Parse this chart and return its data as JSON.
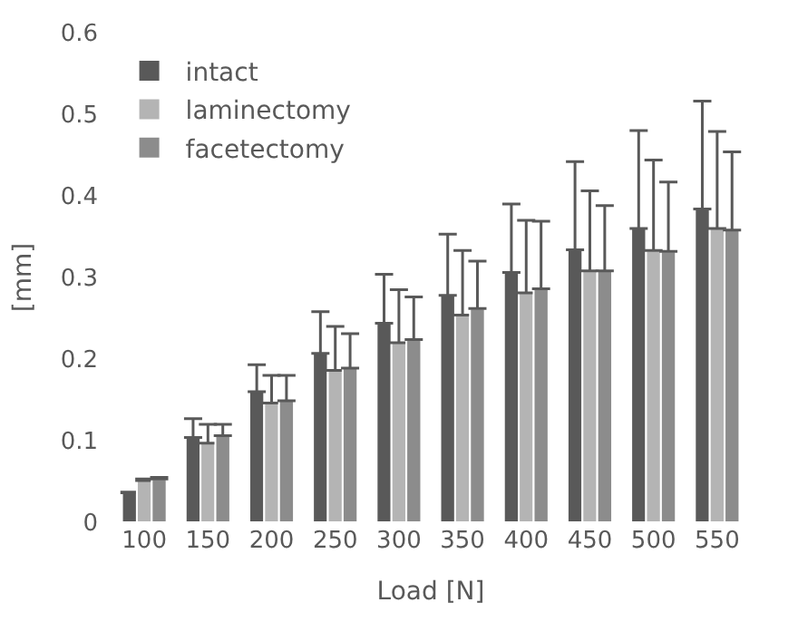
{
  "chart_data": {
    "type": "bar",
    "xlabel": "Load [N]",
    "ylabel": "[mm]",
    "categories": [
      "100",
      "150",
      "200",
      "250",
      "300",
      "350",
      "400",
      "450",
      "500",
      "550"
    ],
    "series": [
      {
        "name": "intact",
        "color": "#595959",
        "values": [
          0.036,
          0.104,
          0.16,
          0.207,
          0.244,
          0.278,
          0.306,
          0.334,
          0.36,
          0.384
        ],
        "errors": [
          [
            0.036,
            0.037
          ],
          [
            0.104,
            0.127
          ],
          [
            0.16,
            0.193
          ],
          [
            0.207,
            0.258
          ],
          [
            0.244,
            0.304
          ],
          [
            0.278,
            0.353
          ],
          [
            0.306,
            0.39
          ],
          [
            0.334,
            0.442
          ],
          [
            0.36,
            0.48
          ],
          [
            0.384,
            0.516
          ]
        ]
      },
      {
        "name": "laminectomy",
        "color": "#b4b4b4",
        "values": [
          0.051,
          0.097,
          0.146,
          0.186,
          0.22,
          0.254,
          0.281,
          0.308,
          0.333,
          0.36
        ],
        "errors": [
          [
            0.051,
            0.053
          ],
          [
            0.097,
            0.12
          ],
          [
            0.146,
            0.18
          ],
          [
            0.186,
            0.24
          ],
          [
            0.22,
            0.285
          ],
          [
            0.254,
            0.333
          ],
          [
            0.281,
            0.37
          ],
          [
            0.308,
            0.406
          ],
          [
            0.333,
            0.444
          ],
          [
            0.36,
            0.479
          ]
        ]
      },
      {
        "name": "facetectomy",
        "color": "#8c8c8c",
        "values": [
          0.053,
          0.106,
          0.149,
          0.189,
          0.224,
          0.262,
          0.286,
          0.308,
          0.332,
          0.358
        ],
        "errors": [
          [
            0.053,
            0.055
          ],
          [
            0.106,
            0.12
          ],
          [
            0.149,
            0.18
          ],
          [
            0.189,
            0.231
          ],
          [
            0.224,
            0.276
          ],
          [
            0.262,
            0.32
          ],
          [
            0.286,
            0.369
          ],
          [
            0.308,
            0.388
          ],
          [
            0.332,
            0.417
          ],
          [
            0.358,
            0.454
          ]
        ]
      }
    ],
    "ylim": [
      0,
      0.6
    ],
    "yticks": [
      0,
      0.1,
      0.2,
      0.3,
      0.4,
      0.5,
      0.6
    ],
    "legend": "top left"
  }
}
